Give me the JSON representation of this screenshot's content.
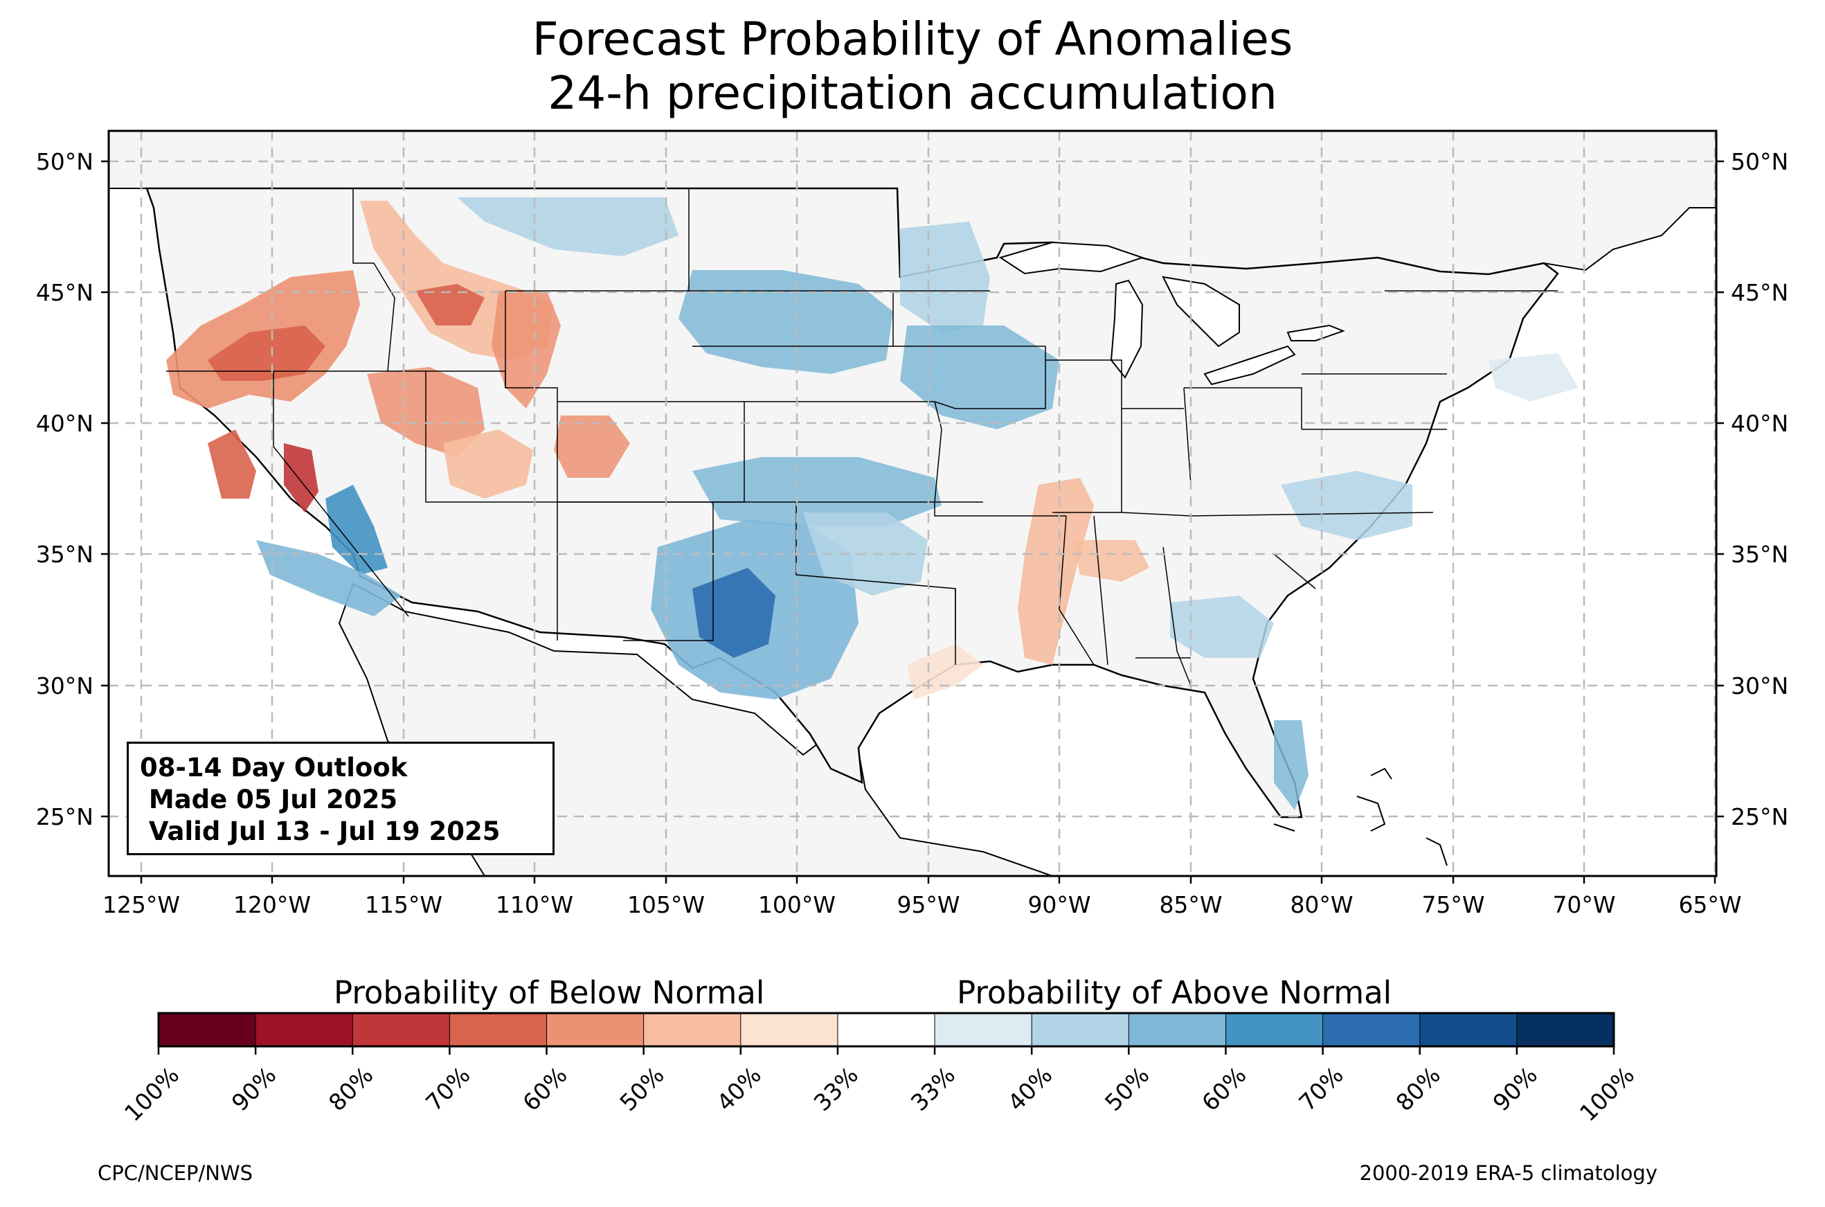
{
  "title": {
    "line1": "Forecast Probability of Anomalies",
    "line2": "24-h precipitation accumulation"
  },
  "outlook": {
    "line1": "08-14 Day Outlook",
    "line2": " Made 05 Jul 2025",
    "line3": " Valid Jul 13 - Jul 19 2025"
  },
  "map": {
    "lon_labels": [
      "125°W",
      "120°W",
      "115°W",
      "110°W",
      "105°W",
      "100°W",
      "95°W",
      "90°W",
      "85°W",
      "80°W",
      "75°W",
      "70°W",
      "65°W"
    ],
    "lat_labels": [
      "50°N",
      "45°N",
      "40°N",
      "35°N",
      "30°N",
      "25°N"
    ],
    "land_color": "#f5f5f5",
    "gridlines": "dashed",
    "regions": [
      {
        "name": "Pacific Northwest / Oregon",
        "category": "below",
        "level": "60%"
      },
      {
        "name": "Idaho / Montana",
        "category": "below",
        "level": "60%"
      },
      {
        "name": "Wyoming",
        "category": "below",
        "level": "50%"
      },
      {
        "name": "Utah / Colorado",
        "category": "below",
        "level": "50%"
      },
      {
        "name": "Central California",
        "category": "below",
        "level": "70%"
      },
      {
        "name": "Southern Nevada / S. California",
        "category": "above",
        "level": "70%"
      },
      {
        "name": "North Dakota / South Dakota / Minnesota",
        "category": "above",
        "level": "50%"
      },
      {
        "name": "Iowa / Wisconsin",
        "category": "above",
        "level": "50%"
      },
      {
        "name": "Kansas",
        "category": "above",
        "level": "50%"
      },
      {
        "name": "West Texas / Oklahoma",
        "category": "above",
        "level": "70%"
      },
      {
        "name": "Mississippi Valley",
        "category": "below",
        "level": "50%"
      },
      {
        "name": "Florida",
        "category": "above",
        "level": "50%"
      },
      {
        "name": "Mid-Atlantic",
        "category": "above",
        "level": "50%"
      }
    ]
  },
  "colorbar": {
    "below_label": "Probability of Below Normal",
    "above_label": "Probability of Above Normal",
    "colors": [
      "#67001f",
      "#9e1127",
      "#c13639",
      "#d9634c",
      "#ec9272",
      "#f6bda0",
      "#fbe2d3",
      "#ffffff",
      "#deebf2",
      "#b1d4e6",
      "#7fb8d7",
      "#4393c3",
      "#2c6eb0",
      "#144d8c",
      "#053061"
    ],
    "ticks": [
      "100%",
      "90%",
      "80%",
      "70%",
      "60%",
      "50%",
      "40%",
      "33%",
      "33%",
      "40%",
      "50%",
      "60%",
      "70%",
      "80%",
      "90%",
      "100%"
    ]
  },
  "footer": {
    "left": "CPC/NCEP/NWS",
    "right": "2000-2019 ERA-5 climatology"
  }
}
